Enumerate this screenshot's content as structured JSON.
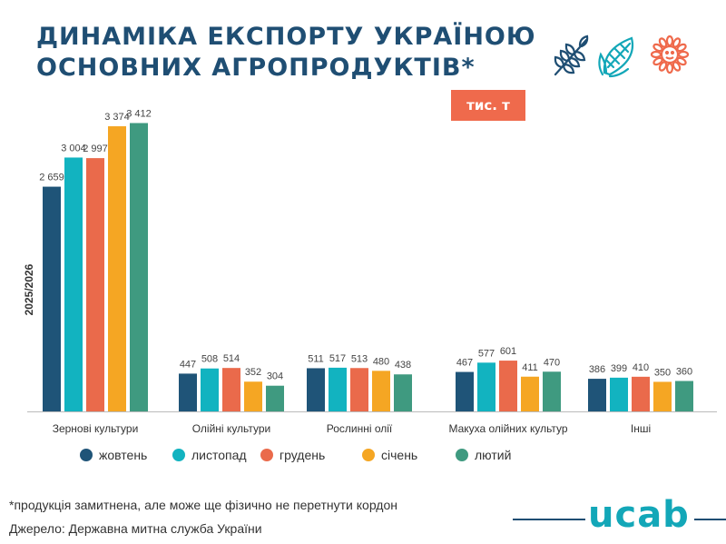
{
  "title": {
    "line1": "ДИНАМІКА ЕКСПОРТУ УКРАЇНОЮ",
    "line2": "ОСНОВНИХ АГРОПРОДУКТІВ*"
  },
  "unit_badge": "тис. т",
  "icons": [
    "wheat-icon",
    "corn-icon",
    "sunflower-icon"
  ],
  "footnote": "*продукція замитнена, але може ще фізично не перетнути кордон",
  "source": "Джерело: Державна митна служба України",
  "logo": "ucab",
  "chart_data": {
    "type": "bar",
    "ylabel": "2025/2026",
    "xlabel": "",
    "ylim": [
      0,
      3600
    ],
    "grid": false,
    "legend_position": "bottom",
    "categories": [
      "Зернові культури",
      "Олійні культури",
      "Рослинні олії",
      "Макуха олійних культур",
      "Інші"
    ],
    "series": [
      {
        "name": "жовтень",
        "color": "#1f5478",
        "values": [
          2659,
          447,
          511,
          467,
          386
        ],
        "labels": [
          "2 659",
          "447",
          "511",
          "467",
          "386"
        ]
      },
      {
        "name": "листопад",
        "color": "#12b3c0",
        "values": [
          3004,
          508,
          517,
          577,
          399
        ],
        "labels": [
          "3 004",
          "508",
          "517",
          "577",
          "399"
        ]
      },
      {
        "name": "грудень",
        "color": "#ea6a4b",
        "values": [
          2997,
          514,
          513,
          601,
          410
        ],
        "labels": [
          "2 997",
          "514",
          "513",
          "601",
          "410"
        ]
      },
      {
        "name": "січень",
        "color": "#f5a623",
        "values": [
          3374,
          352,
          480,
          411,
          350
        ],
        "labels": [
          "3 374",
          "352",
          "480",
          "411",
          "350"
        ]
      },
      {
        "name": "лютий",
        "color": "#3f9a80",
        "values": [
          3412,
          304,
          438,
          470,
          360
        ],
        "labels": [
          "3 412",
          "304",
          "438",
          "470",
          "360"
        ]
      }
    ]
  }
}
